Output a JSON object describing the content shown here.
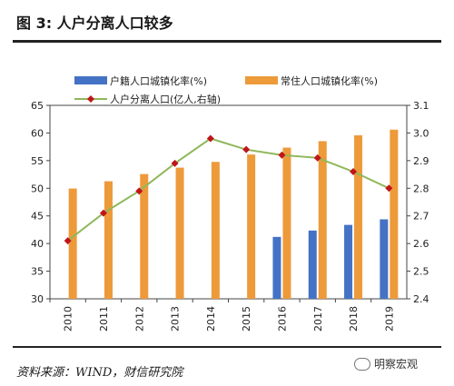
{
  "header": {
    "title": "图 3:  人户分离人口较多"
  },
  "footer": {
    "source": "资料来源：WIND，财信研究院",
    "watermark": "明察宏观"
  },
  "colors": {
    "registered": "#4472C4",
    "resident": "#ED9A3A",
    "line": "#8FB85A",
    "marker": "#C0141A"
  },
  "chart_data": {
    "type": "bar",
    "categories": [
      "2010",
      "2011",
      "2012",
      "2013",
      "2014",
      "2015",
      "2016",
      "2017",
      "2018",
      "2019"
    ],
    "series": [
      {
        "name": "户籍人口城镇化率(%)",
        "type": "bar",
        "axis": "left",
        "values": [
          null,
          null,
          null,
          null,
          null,
          null,
          41.2,
          42.35,
          43.37,
          44.38
        ]
      },
      {
        "name": "常住人口城镇化率(%)",
        "type": "bar",
        "axis": "left",
        "values": [
          49.95,
          51.27,
          52.57,
          53.73,
          54.77,
          56.1,
          57.35,
          58.52,
          59.58,
          60.6
        ]
      },
      {
        "name": "人户分离人口(亿人,右轴)",
        "type": "line",
        "axis": "right",
        "values": [
          2.61,
          2.71,
          2.79,
          2.89,
          2.98,
          2.94,
          2.92,
          2.91,
          2.86,
          2.8
        ]
      }
    ],
    "y_left": {
      "min": 30,
      "max": 65,
      "ticks": [
        30,
        35,
        40,
        45,
        50,
        55,
        60,
        65
      ]
    },
    "y_right": {
      "min": 2.4,
      "max": 3.1,
      "ticks": [
        "2.4",
        "2.5",
        "2.6",
        "2.7",
        "2.8",
        "2.9",
        "3.0",
        "3.1"
      ]
    },
    "legend_position": "top"
  }
}
